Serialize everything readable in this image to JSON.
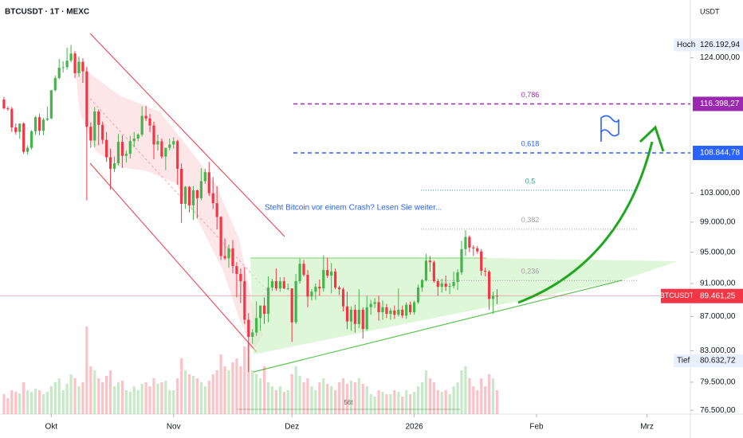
{
  "chart_data": {
    "type": "candlestick",
    "title": "BTCUSDT · 1T · MEXC",
    "currency": "USDT",
    "log_scale": true,
    "up_color": "#43b549",
    "down_color": "#f23645",
    "xlim": [
      -1,
      174
    ],
    "ylim": [
      76100,
      134200
    ],
    "xticks": [
      {
        "value": 12,
        "label": "Okt"
      },
      {
        "value": 43,
        "label": "Nov"
      },
      {
        "value": 73,
        "label": "Dez"
      },
      {
        "value": 104,
        "label": "2026"
      },
      {
        "value": 135,
        "label": "Feb"
      },
      {
        "value": 163,
        "label": "Mrz"
      }
    ],
    "yticks": [
      {
        "value": 76500,
        "label": "76.500,00"
      },
      {
        "value": 79500,
        "label": "79.500,00"
      },
      {
        "value": 83000,
        "label": "83.000,00"
      },
      {
        "value": 87000,
        "label": "87.000,00"
      },
      {
        "value": 91000,
        "label": "91.000,00"
      },
      {
        "value": 95000,
        "label": "95.000,00"
      },
      {
        "value": 99000,
        "label": "99.000,00"
      },
      {
        "value": 103000,
        "label": "103.000,00"
      },
      {
        "value": 124000,
        "label": "124.000,00"
      }
    ],
    "high": {
      "label": "Hoch",
      "value": 126192.94,
      "value_label": "126.192,94"
    },
    "low": {
      "label": "Tief",
      "value": 80632.72,
      "value_label": "80.632,72"
    },
    "last": {
      "name": "BTCUSDT",
      "value": 89461.25,
      "value_label": "89.461,25"
    },
    "fib_levels": [
      {
        "label": "0,786",
        "value": 116398.27,
        "value_label": "116.398,27",
        "color": "#9c27b0"
      },
      {
        "label": "0,618",
        "value": 108844.78,
        "value_label": "108.844,78",
        "color": "#2962ff"
      },
      {
        "label": "0,5",
        "value": 103413,
        "color": "#26a69a"
      },
      {
        "label": "0,382",
        "value": 98037,
        "color": "#a0a0a0"
      },
      {
        "label": "0,236",
        "value": 91385,
        "color": "#a0a0a0"
      }
    ],
    "annotation": "Steht Bitcoin vor einem Crash? Lesen Sie weiter...",
    "range_label": "56t",
    "ohlc": [
      [
        117100,
        117500,
        115500,
        115700
      ],
      [
        115700,
        116000,
        115300,
        115600
      ],
      [
        115600,
        115900,
        112000,
        112700
      ],
      [
        112700,
        113300,
        111600,
        112000
      ],
      [
        112000,
        113300,
        111000,
        113300
      ],
      [
        113300,
        113500,
        108700,
        109000
      ],
      [
        109000,
        110000,
        108600,
        109600
      ],
      [
        109600,
        112300,
        109300,
        112100
      ],
      [
        112100,
        114500,
        111600,
        114300
      ],
      [
        114300,
        114800,
        111500,
        112200
      ],
      [
        112200,
        114200,
        111500,
        113900
      ],
      [
        113900,
        116000,
        113700,
        114100
      ],
      [
        114100,
        118600,
        114000,
        118600
      ],
      [
        118600,
        121000,
        118400,
        120600
      ],
      [
        120600,
        123800,
        120400,
        122300
      ],
      [
        122300,
        123400,
        121500,
        122400
      ],
      [
        122400,
        125700,
        122000,
        123500
      ],
      [
        123500,
        126192.94,
        123200,
        124700
      ],
      [
        124700,
        125100,
        120600,
        121400
      ],
      [
        121400,
        124200,
        120800,
        123300
      ],
      [
        123300,
        123900,
        119800,
        121700
      ],
      [
        121700,
        122500,
        102000,
        112800
      ],
      [
        112800,
        113500,
        109600,
        110700
      ],
      [
        110700,
        115900,
        109700,
        115200
      ],
      [
        115200,
        115500,
        110000,
        113100
      ],
      [
        113100,
        113600,
        110200,
        110800
      ],
      [
        110800,
        112000,
        107500,
        108200
      ],
      [
        108200,
        109500,
        103500,
        106500
      ],
      [
        106500,
        108300,
        106000,
        107300
      ],
      [
        107300,
        111700,
        107000,
        110500
      ],
      [
        110500,
        111500,
        106600,
        108400
      ],
      [
        108400,
        109200,
        107400,
        108700
      ],
      [
        108700,
        111400,
        108000,
        110600
      ],
      [
        110600,
        112000,
        109700,
        111000
      ],
      [
        111000,
        111800,
        110600,
        111600
      ],
      [
        111600,
        116000,
        111300,
        114500
      ],
      [
        114500,
        116100,
        113700,
        114100
      ],
      [
        114100,
        114800,
        112000,
        113000
      ],
      [
        113000,
        113600,
        107900,
        110100
      ],
      [
        110100,
        111600,
        109200,
        110600
      ],
      [
        110600,
        111000,
        108000,
        108300
      ],
      [
        108300,
        109600,
        106300,
        109600
      ],
      [
        109600,
        111000,
        109200,
        110100
      ],
      [
        110100,
        111200,
        109500,
        110600
      ],
      [
        110600,
        110800,
        104200,
        106500
      ],
      [
        106500,
        107300,
        98900,
        101500
      ],
      [
        101500,
        104000,
        100800,
        103900
      ],
      [
        103900,
        104000,
        100300,
        101300
      ],
      [
        101300,
        104000,
        99300,
        103400
      ],
      [
        103400,
        103500,
        99500,
        102300
      ],
      [
        102300,
        106600,
        102000,
        104700
      ],
      [
        104700,
        106500,
        104300,
        106000
      ],
      [
        106000,
        107500,
        102600,
        103000
      ],
      [
        103000,
        105300,
        100800,
        101600
      ],
      [
        101600,
        104000,
        98000,
        99700
      ],
      [
        99700,
        99800,
        94000,
        94500
      ],
      [
        94500,
        96800,
        94000,
        94200
      ],
      [
        94200,
        96000,
        93000,
        95500
      ],
      [
        95500,
        96600,
        92300,
        93200
      ],
      [
        93200,
        93700,
        89300,
        92200
      ],
      [
        92200,
        92900,
        88600,
        91300
      ],
      [
        91300,
        93100,
        86100,
        86600
      ],
      [
        86600,
        87400,
        80632.72,
        84600
      ],
      [
        84600,
        85500,
        83800,
        85100
      ],
      [
        85100,
        88800,
        84700,
        86800
      ],
      [
        86800,
        88200,
        85300,
        88300
      ],
      [
        88300,
        89300,
        86100,
        87300
      ],
      [
        87300,
        91900,
        86300,
        90500
      ],
      [
        90500,
        91600,
        90100,
        91300
      ],
      [
        91300,
        92900,
        90100,
        90400
      ],
      [
        90400,
        91800,
        90000,
        91300
      ],
      [
        91300,
        91800,
        90300,
        90400
      ],
      [
        90400,
        91000,
        90200,
        90400
      ],
      [
        90400,
        90400,
        84000,
        86300
      ],
      [
        86300,
        92200,
        86100,
        91300
      ],
      [
        91300,
        94200,
        91000,
        93500
      ],
      [
        93500,
        94000,
        91900,
        92100
      ],
      [
        92100,
        92700,
        88100,
        89400
      ],
      [
        89400,
        90300,
        88900,
        90000
      ],
      [
        90000,
        91000,
        89000,
        90600
      ],
      [
        90600,
        91500,
        89500,
        90400
      ],
      [
        90400,
        94600,
        90000,
        92700
      ],
      [
        92700,
        94300,
        91700,
        92000
      ],
      [
        92000,
        93600,
        89800,
        92500
      ],
      [
        92500,
        92900,
        90300,
        90500
      ],
      [
        90500,
        90700,
        89600,
        90300
      ],
      [
        90300,
        90500,
        87600,
        88200
      ],
      [
        88200,
        90000,
        85500,
        86400
      ],
      [
        86400,
        88200,
        85300,
        87800
      ],
      [
        87800,
        88400,
        85100,
        86100
      ],
      [
        86100,
        90300,
        85600,
        87800
      ],
      [
        87800,
        88100,
        84400,
        85500
      ],
      [
        85500,
        89500,
        85300,
        88100
      ],
      [
        88100,
        89000,
        87200,
        88500
      ],
      [
        88500,
        89200,
        88000,
        88700
      ],
      [
        88700,
        89500,
        86500,
        87500
      ],
      [
        87500,
        88900,
        86600,
        88100
      ],
      [
        88100,
        88500,
        86800,
        87300
      ],
      [
        87300,
        88000,
        86600,
        87700
      ],
      [
        87700,
        88300,
        86700,
        87200
      ],
      [
        87200,
        90400,
        87000,
        87800
      ],
      [
        87800,
        88300,
        86800,
        87100
      ],
      [
        87100,
        88700,
        86700,
        88400
      ],
      [
        88400,
        88800,
        87200,
        87500
      ],
      [
        87500,
        88900,
        87200,
        88700
      ],
      [
        88700,
        90900,
        88500,
        90500
      ],
      [
        90500,
        91600,
        90000,
        91400
      ],
      [
        91400,
        94800,
        91300,
        93900
      ],
      [
        93900,
        94500,
        92500,
        93700
      ],
      [
        93700,
        93900,
        91100,
        91300
      ],
      [
        91300,
        91600,
        89500,
        90600
      ],
      [
        90600,
        91600,
        89900,
        91000
      ],
      [
        91000,
        92000,
        90100,
        90600
      ],
      [
        90600,
        91100,
        89700,
        90700
      ],
      [
        90700,
        92500,
        90400,
        91200
      ],
      [
        91200,
        92800,
        90200,
        92400
      ],
      [
        92400,
        96500,
        92100,
        95400
      ],
      [
        95400,
        97900,
        94500,
        97000
      ],
      [
        97000,
        97200,
        95000,
        95600
      ],
      [
        95600,
        95900,
        94500,
        95500
      ],
      [
        95500,
        95800,
        94800,
        95100
      ],
      [
        95100,
        95400,
        92000,
        92600
      ],
      [
        92600,
        93000,
        91900,
        92500
      ],
      [
        92500,
        92700,
        87800,
        89100
      ],
      [
        89100,
        90000,
        87300,
        89500
      ],
      [
        89500,
        90300,
        88500,
        89461.25
      ]
    ],
    "volume": [
      25,
      20,
      30,
      28,
      26,
      40,
      30,
      28,
      32,
      30,
      25,
      28,
      35,
      40,
      45,
      30,
      38,
      50,
      45,
      35,
      40,
      110,
      60,
      55,
      45,
      40,
      48,
      55,
      35,
      40,
      42,
      30,
      28,
      35,
      30,
      38,
      40,
      35,
      45,
      38,
      40,
      42,
      30,
      30,
      45,
      70,
      55,
      50,
      48,
      45,
      40,
      35,
      42,
      50,
      55,
      75,
      60,
      55,
      65,
      70,
      60,
      85,
      90,
      55,
      50,
      45,
      60,
      40,
      35,
      30,
      35,
      28,
      30,
      50,
      60,
      48,
      40,
      45,
      35,
      30,
      40,
      45,
      38,
      35,
      30,
      40,
      45,
      38,
      42,
      40,
      45,
      38,
      35,
      25,
      22,
      30,
      28,
      25,
      25,
      30,
      28,
      22,
      30,
      25,
      28,
      35,
      40,
      55,
      45,
      40,
      30,
      28,
      30,
      25,
      35,
      40,
      55,
      60,
      45,
      35,
      30,
      45,
      35,
      50,
      45,
      30
    ]
  }
}
